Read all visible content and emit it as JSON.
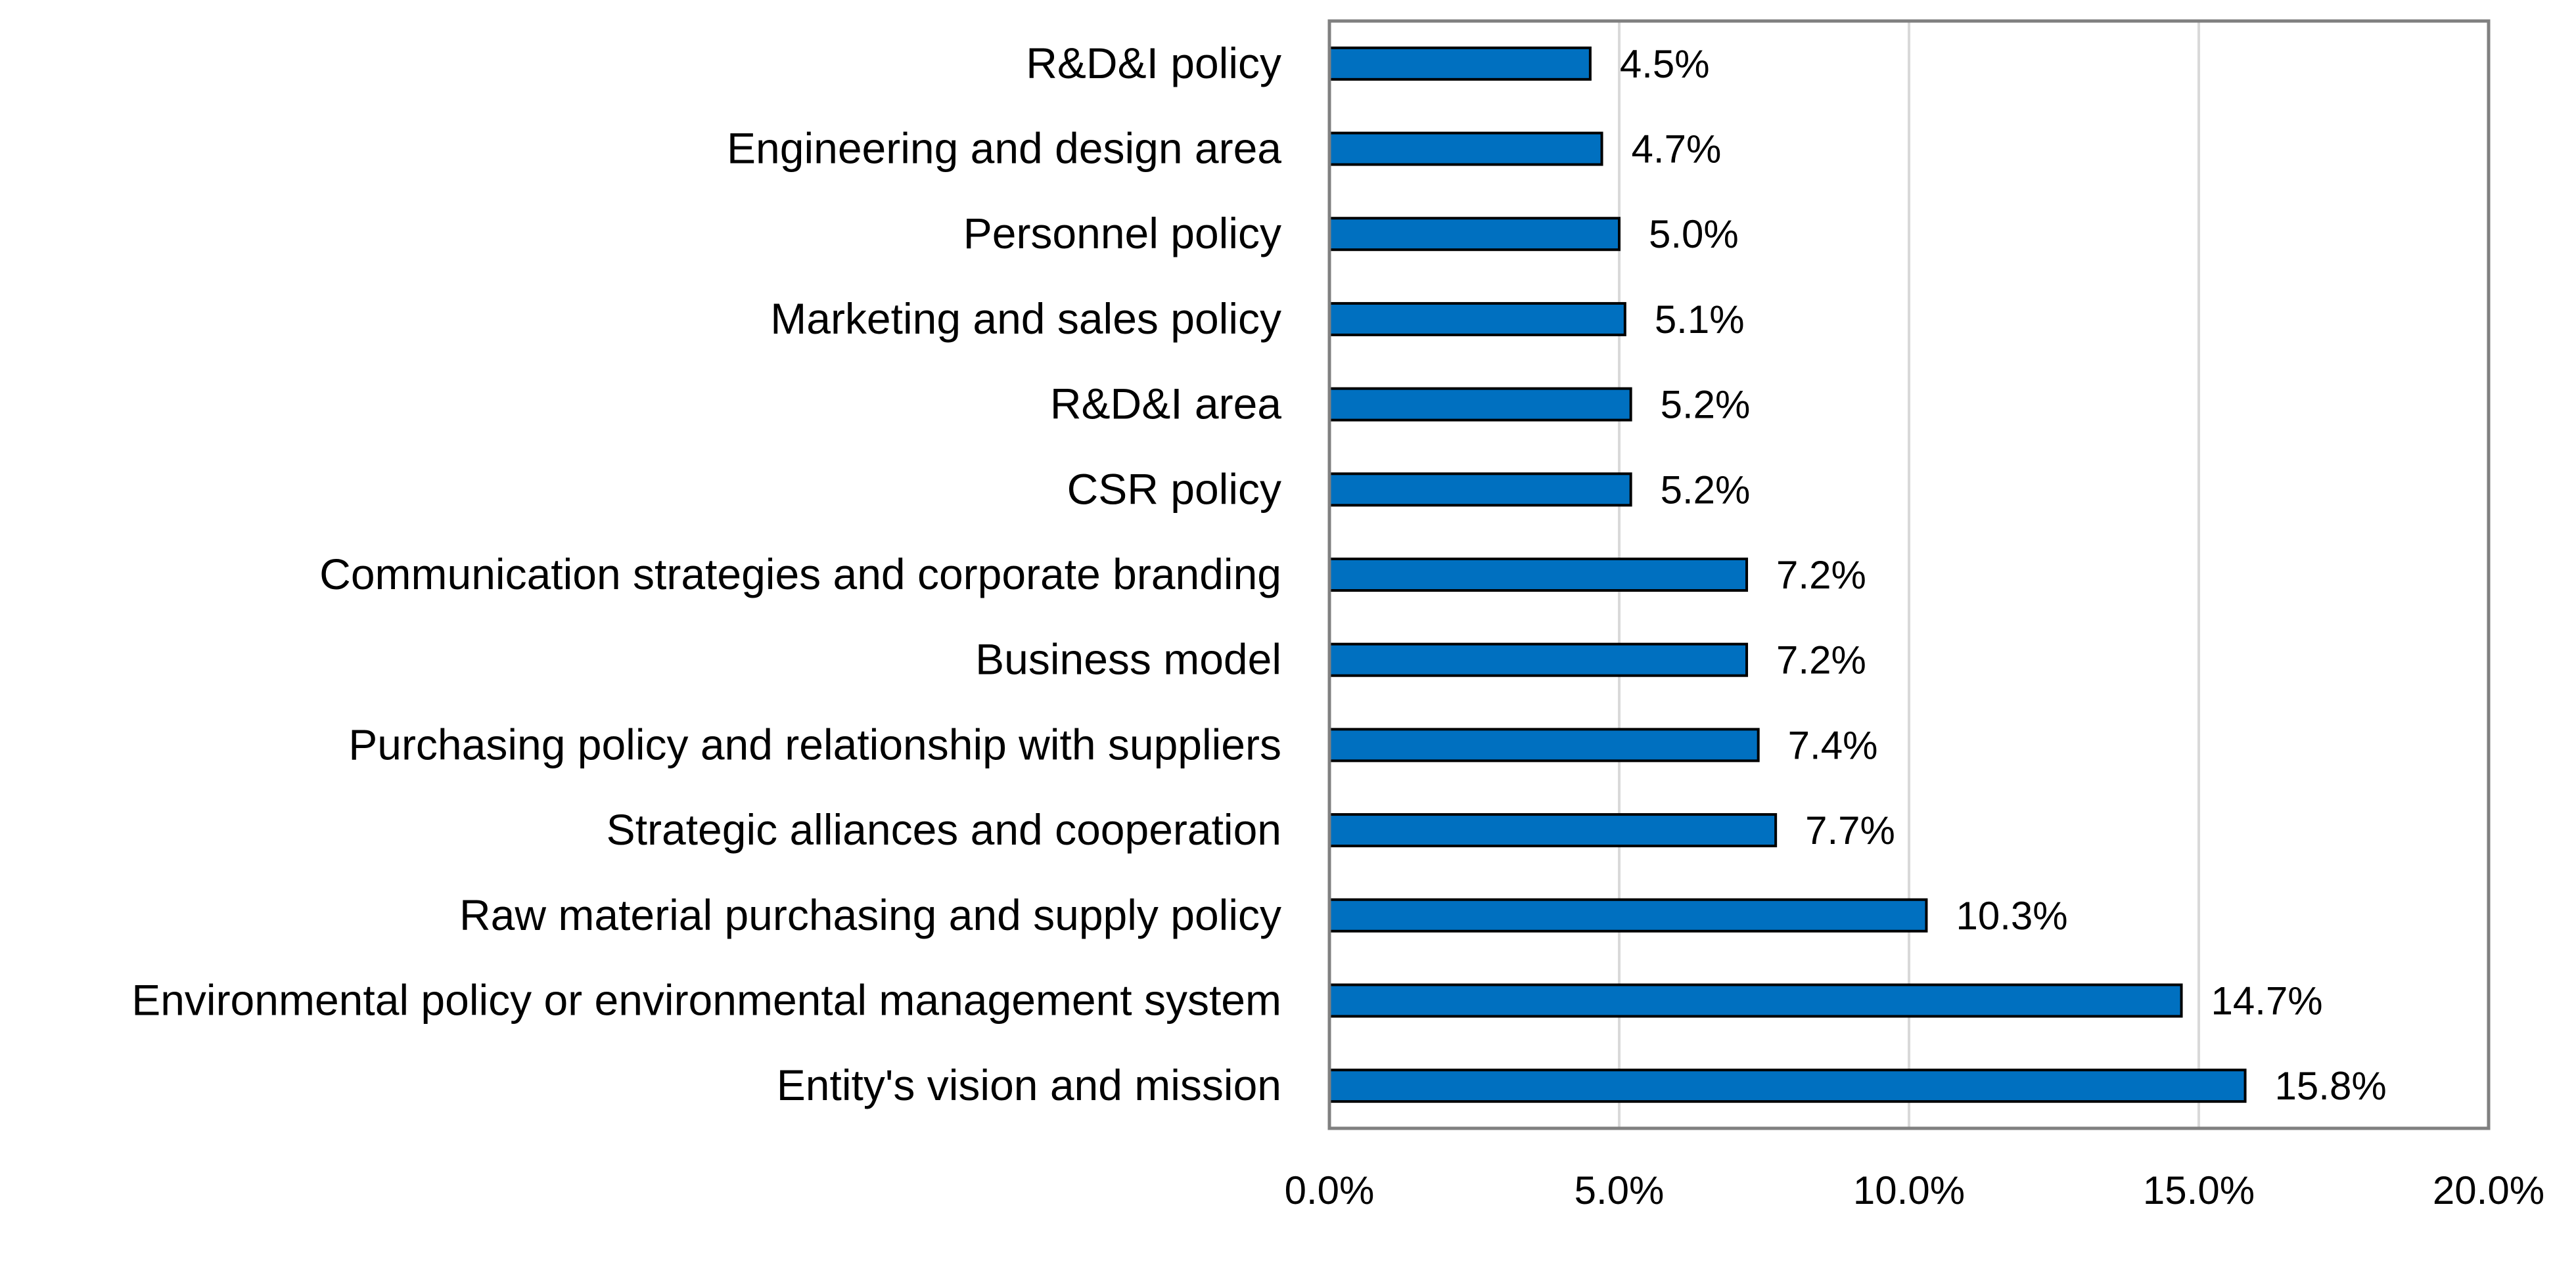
{
  "chart_data": {
    "type": "bar",
    "orientation": "horizontal",
    "title": "",
    "xlabel": "",
    "ylabel": "",
    "xlim": [
      0,
      20
    ],
    "x_tick_labels": [
      "0.0%",
      "5.0%",
      "10.0%",
      "15.0%",
      "20.0%"
    ],
    "grid": "vertical",
    "bar_color": "#0070C0",
    "categories": [
      "R&D&I policy",
      "Engineering and design area",
      "Personnel policy",
      "Marketing and sales policy",
      "R&D&I area",
      "CSR policy",
      "Communication strategies and corporate branding",
      "Business model",
      "Purchasing policy and relationship with suppliers",
      "Strategic alliances and cooperation",
      "Raw material purchasing and supply policy",
      "Environmental policy or environmental management system",
      "Entity's vision and mission"
    ],
    "values": [
      4.5,
      4.7,
      5.0,
      5.1,
      5.2,
      5.2,
      7.2,
      7.2,
      7.4,
      7.7,
      10.3,
      14.7,
      15.8
    ],
    "value_labels": [
      "4.5%",
      "4.7%",
      "5.0%",
      "5.1%",
      "5.2%",
      "5.2%",
      "7.2%",
      "7.2%",
      "7.4%",
      "7.7%",
      "10.3%",
      "14.7%",
      "15.8%"
    ]
  }
}
